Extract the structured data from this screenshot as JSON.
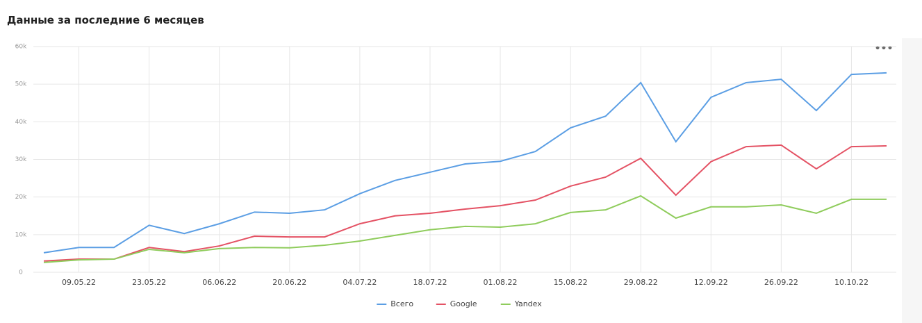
{
  "chart_data": {
    "type": "line",
    "title": "Данные за последние 6 месяцев",
    "categories": [
      null,
      "09.05.22",
      null,
      "23.05.22",
      null,
      "06.06.22",
      null,
      "20.06.22",
      null,
      "04.07.22",
      null,
      "18.07.22",
      null,
      "01.08.22",
      null,
      "15.08.22",
      null,
      "29.08.22",
      null,
      "12.09.22",
      null,
      "26.09.22",
      null,
      "10.10.22",
      null
    ],
    "series": [
      {
        "name": "Всего",
        "color": "#5b9ee4",
        "values": [
          5200,
          6600,
          6600,
          12500,
          10300,
          12900,
          16000,
          15700,
          16600,
          20900,
          24400,
          26600,
          28800,
          29500,
          32100,
          38400,
          41500,
          50400,
          34700,
          46500,
          50400,
          51300,
          43000,
          52600,
          53000
        ]
      },
      {
        "name": "Google",
        "color": "#e45264",
        "values": [
          3000,
          3500,
          3500,
          6600,
          5500,
          7000,
          9600,
          9400,
          9400,
          12900,
          15000,
          15700,
          16800,
          17700,
          19200,
          22900,
          25300,
          30300,
          20500,
          29400,
          33400,
          33800,
          27500,
          33400,
          33600
        ]
      },
      {
        "name": "Yandex",
        "color": "#8fcc5c",
        "values": [
          2600,
          3300,
          3500,
          6100,
          5200,
          6300,
          6600,
          6500,
          7200,
          8300,
          9800,
          11300,
          12200,
          12000,
          12900,
          15900,
          16600,
          20300,
          14400,
          17400,
          17400,
          17900,
          15700,
          19400,
          19400
        ]
      }
    ],
    "ylim": [
      0,
      60000
    ],
    "yticks": [
      0,
      {
        "value": 10000,
        "label": "10k"
      },
      {
        "value": 20000,
        "label": "20k"
      },
      {
        "value": 30000,
        "label": "30k"
      },
      {
        "value": 40000,
        "label": "40k"
      },
      {
        "value": 50000,
        "label": "50k"
      },
      {
        "value": 60000,
        "label": "60k"
      }
    ],
    "grid": true
  }
}
